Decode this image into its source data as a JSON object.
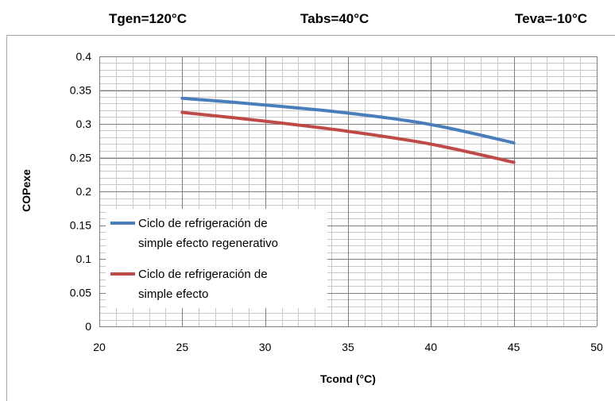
{
  "header": {
    "tgen": "Tgen=120°C",
    "tabs": "Tabs=40°C",
    "teva": "Teva=-10°C"
  },
  "chart_data": {
    "type": "line",
    "title": "",
    "xlabel": "Tcond (°C)",
    "ylabel": "COPexe",
    "xlim": [
      20,
      50
    ],
    "ylim": [
      0,
      0.4
    ],
    "x_ticks": [
      20,
      25,
      30,
      35,
      40,
      45,
      50
    ],
    "y_ticks": [
      0,
      0.05,
      0.1,
      0.15,
      0.2,
      0.25,
      0.3,
      0.35,
      0.4
    ],
    "x_tick_labels": [
      "20",
      "25",
      "30",
      "35",
      "40",
      "45",
      "50"
    ],
    "y_tick_labels": [
      "0",
      "0.05",
      "0.1",
      "0.15",
      "0.2",
      "0.25",
      "0.3",
      "0.35",
      "0.4"
    ],
    "grid": true,
    "legend_position": "bottom-left",
    "series": [
      {
        "name_line1": "Ciclo de refrigeración de",
        "name_line2": "simple efecto regenerativo",
        "color": "#4a7ebb",
        "x": [
          25,
          30,
          35,
          40,
          45
        ],
        "y": [
          0.338,
          0.328,
          0.316,
          0.299,
          0.272
        ]
      },
      {
        "name_line1": "Ciclo de refrigeración de",
        "name_line2": "simple efecto",
        "color": "#be4b48",
        "x": [
          25,
          30,
          35,
          40,
          45
        ],
        "y": [
          0.317,
          0.304,
          0.289,
          0.27,
          0.243
        ]
      }
    ]
  }
}
